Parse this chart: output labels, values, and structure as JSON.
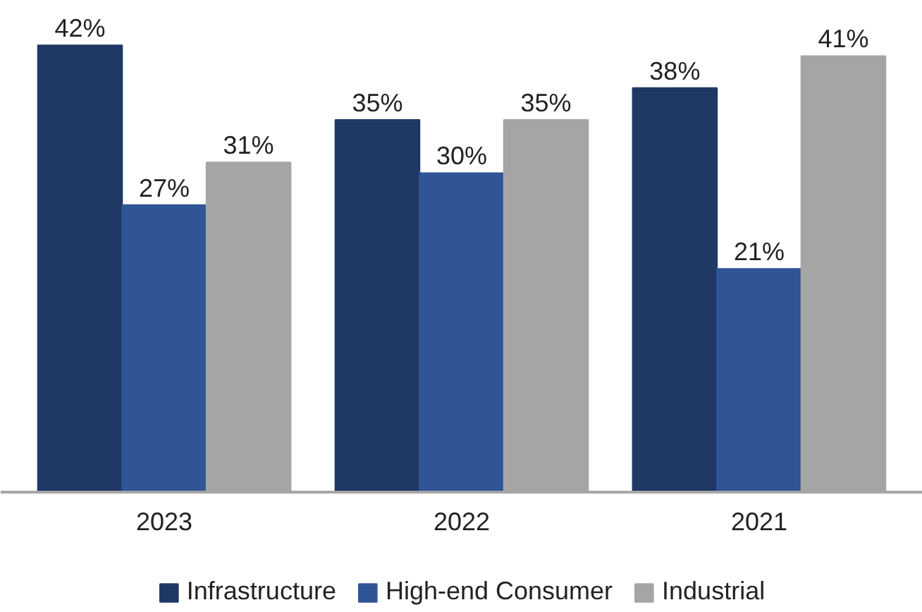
{
  "chart_data": {
    "type": "bar",
    "categories": [
      "2023",
      "2022",
      "2021"
    ],
    "series": [
      {
        "name": "Infrastructure",
        "color": "#203864",
        "values": [
          42,
          35,
          38
        ],
        "value_labels": [
          "42%",
          "35%",
          "38%"
        ]
      },
      {
        "name": "High-end Consumer",
        "color": "#2f5597",
        "values": [
          27,
          30,
          21
        ],
        "value_labels": [
          "27%",
          "30%",
          "21%"
        ]
      },
      {
        "name": "Industrial",
        "color": "#a5a5a5",
        "values": [
          31,
          35,
          41
        ],
        "value_labels": [
          "31%",
          "35%",
          "41%"
        ]
      }
    ],
    "legend": "bottom"
  }
}
